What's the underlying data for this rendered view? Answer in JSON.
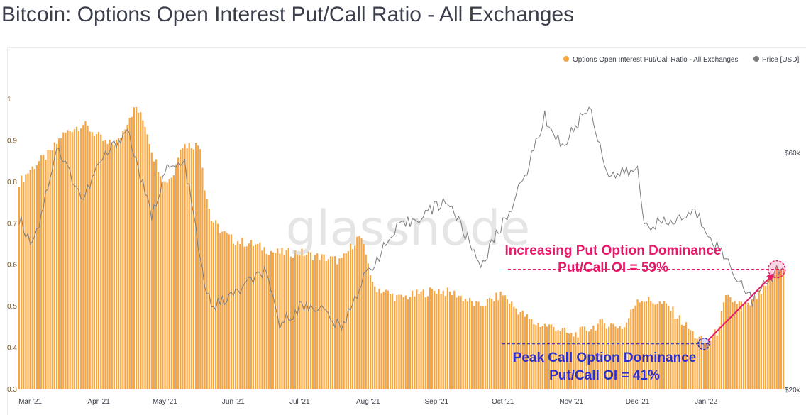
{
  "title": "Bitcoin: Options Open Interest Put/Call Ratio - All Exchanges",
  "watermark": "glassnode",
  "colors": {
    "bar": "#f7a541",
    "price": "#7d7d7d",
    "put": "#e8196b",
    "call": "#2a2ecf"
  },
  "chart_data": {
    "type": "bar",
    "legend_position": "top-right",
    "grid": false,
    "x_range": [
      "2021-02-24",
      "2022-02-05"
    ],
    "ylim": [
      0.3,
      1.0
    ],
    "y_ticks": [
      "0.3",
      "0.4",
      "0.5",
      "0.6",
      "0.7",
      "0.8",
      "0.9",
      "1"
    ],
    "price_axis_ticks": [
      "$20k",
      "$60k"
    ],
    "price_ylim": [
      20000,
      69000
    ],
    "x_ticks": [
      {
        "label": "Mar '21",
        "date": "2021-03-01"
      },
      {
        "label": "Apr '21",
        "date": "2021-04-01"
      },
      {
        "label": "May '21",
        "date": "2021-05-01"
      },
      {
        "label": "Jun '21",
        "date": "2021-06-01"
      },
      {
        "label": "Jul '21",
        "date": "2021-07-01"
      },
      {
        "label": "Aug '21",
        "date": "2021-08-01"
      },
      {
        "label": "Sep '21",
        "date": "2021-09-01"
      },
      {
        "label": "Oct '21",
        "date": "2021-10-01"
      },
      {
        "label": "Nov '21",
        "date": "2021-11-01"
      },
      {
        "label": "Dec '21",
        "date": "2021-12-01"
      },
      {
        "label": "Jan '22",
        "date": "2022-01-01"
      }
    ],
    "series": [
      {
        "name": "Options Open Interest Put/Call Ratio - All Exchanges",
        "type": "bar",
        "points": [
          [
            "2021-02-24",
            0.8
          ],
          [
            "2021-03-01",
            0.83
          ],
          [
            "2021-03-05",
            0.85
          ],
          [
            "2021-03-10",
            0.87
          ],
          [
            "2021-03-15",
            0.91
          ],
          [
            "2021-03-20",
            0.93
          ],
          [
            "2021-03-25",
            0.94
          ],
          [
            "2021-04-01",
            0.91
          ],
          [
            "2021-04-05",
            0.89
          ],
          [
            "2021-04-10",
            0.9
          ],
          [
            "2021-04-15",
            0.96
          ],
          [
            "2021-04-18",
            0.98
          ],
          [
            "2021-04-22",
            0.94
          ],
          [
            "2021-04-26",
            0.86
          ],
          [
            "2021-05-01",
            0.8
          ],
          [
            "2021-05-05",
            0.82
          ],
          [
            "2021-05-08",
            0.89
          ],
          [
            "2021-05-12",
            0.89
          ],
          [
            "2021-05-17",
            0.89
          ],
          [
            "2021-05-19",
            0.79
          ],
          [
            "2021-05-22",
            0.71
          ],
          [
            "2021-05-27",
            0.68
          ],
          [
            "2021-06-01",
            0.66
          ],
          [
            "2021-06-10",
            0.65
          ],
          [
            "2021-06-20",
            0.63
          ],
          [
            "2021-07-01",
            0.63
          ],
          [
            "2021-07-10",
            0.62
          ],
          [
            "2021-07-20",
            0.61
          ],
          [
            "2021-07-25",
            0.65
          ],
          [
            "2021-07-28",
            0.67
          ],
          [
            "2021-08-01",
            0.61
          ],
          [
            "2021-08-03",
            0.55
          ],
          [
            "2021-08-15",
            0.52
          ],
          [
            "2021-09-01",
            0.54
          ],
          [
            "2021-09-10",
            0.53
          ],
          [
            "2021-09-20",
            0.5
          ],
          [
            "2021-10-01",
            0.53
          ],
          [
            "2021-10-06",
            0.5
          ],
          [
            "2021-10-15",
            0.46
          ],
          [
            "2021-10-25",
            0.45
          ],
          [
            "2021-11-01",
            0.43
          ],
          [
            "2021-11-15",
            0.46
          ],
          [
            "2021-11-25",
            0.45
          ],
          [
            "2021-12-01",
            0.52
          ],
          [
            "2021-12-10",
            0.51
          ],
          [
            "2021-12-15",
            0.5
          ],
          [
            "2021-12-20",
            0.47
          ],
          [
            "2021-12-27",
            0.43
          ],
          [
            "2022-01-01",
            0.41
          ],
          [
            "2022-01-06",
            0.44
          ],
          [
            "2022-01-10",
            0.52
          ],
          [
            "2022-01-20",
            0.5
          ],
          [
            "2022-01-27",
            0.54
          ],
          [
            "2022-02-02",
            0.59
          ]
        ]
      },
      {
        "name": "Price [USD]",
        "type": "line",
        "points": [
          [
            "2021-02-24",
            49000
          ],
          [
            "2021-03-01",
            45000
          ],
          [
            "2021-03-05",
            48000
          ],
          [
            "2021-03-13",
            61000
          ],
          [
            "2021-03-25",
            52000
          ],
          [
            "2021-04-01",
            58000
          ],
          [
            "2021-04-14",
            64000
          ],
          [
            "2021-04-25",
            49000
          ],
          [
            "2021-05-01",
            57000
          ],
          [
            "2021-05-10",
            58000
          ],
          [
            "2021-05-15",
            47000
          ],
          [
            "2021-05-19",
            37000
          ],
          [
            "2021-05-23",
            34000
          ],
          [
            "2021-06-01",
            36000
          ],
          [
            "2021-06-15",
            40000
          ],
          [
            "2021-06-22",
            31000
          ],
          [
            "2021-07-01",
            34000
          ],
          [
            "2021-07-10",
            34000
          ],
          [
            "2021-07-20",
            30000
          ],
          [
            "2021-07-25",
            35000
          ],
          [
            "2021-08-01",
            40000
          ],
          [
            "2021-08-14",
            47000
          ],
          [
            "2021-09-06",
            52000
          ],
          [
            "2021-09-21",
            41000
          ],
          [
            "2021-10-01",
            48000
          ],
          [
            "2021-10-10",
            55000
          ],
          [
            "2021-10-20",
            66000
          ],
          [
            "2021-10-28",
            61000
          ],
          [
            "2021-11-09",
            68000
          ],
          [
            "2021-11-18",
            56000
          ],
          [
            "2021-12-01",
            57000
          ],
          [
            "2021-12-04",
            48000
          ],
          [
            "2021-12-15",
            48000
          ],
          [
            "2021-12-27",
            50000
          ],
          [
            "2022-01-10",
            42000
          ],
          [
            "2022-01-22",
            35000
          ],
          [
            "2022-02-04",
            41000
          ]
        ]
      }
    ],
    "annotations": [
      {
        "text_line1": "Increasing Put Option Dominance",
        "text_line2": "Put/Call OI = 59%",
        "date": "2022-02-02",
        "value": 0.59
      },
      {
        "text_line1": "Peak Call Option Dominance",
        "text_line2": "Put/Call OI = 41%",
        "date": "2021-12-31",
        "value": 0.41
      }
    ]
  }
}
